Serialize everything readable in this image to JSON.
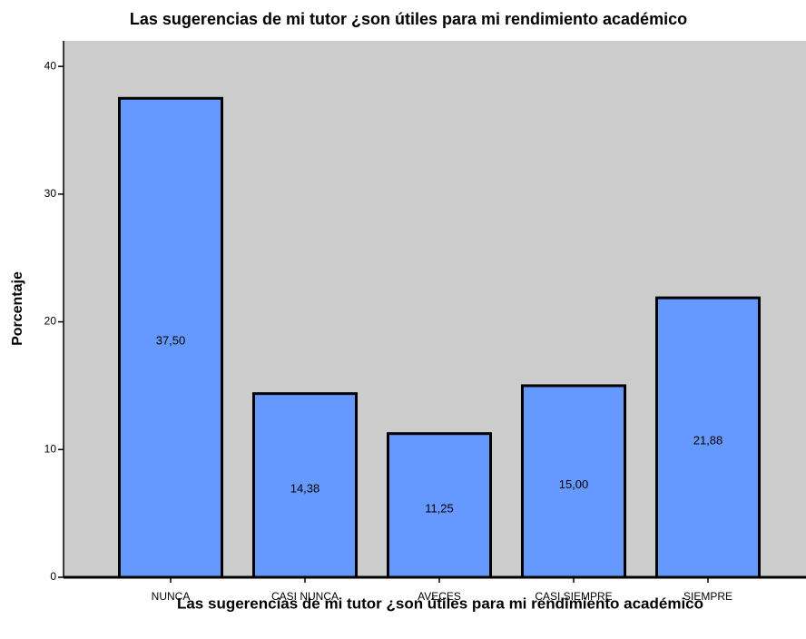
{
  "chart_data": {
    "type": "bar",
    "title": "Las sugerencias de mi tutor ¿son útiles para mi rendimiento académico",
    "x_label": "Las sugerencias de mi tutor ¿son útiles para mi rendimiento académico",
    "y_label": "Porcentaje",
    "categories": [
      "NUNCA",
      "CASI NUNCA",
      "AVECES",
      "CASI SIEMPRE",
      "SIEMPRE"
    ],
    "values": [
      37.5,
      14.38,
      11.25,
      15.0,
      21.88
    ],
    "value_labels": [
      "37,50",
      "14,38",
      "11,25",
      "15,00",
      "21,88"
    ],
    "color": "#6699ff",
    "background": "#cccccc",
    "ylim": [
      0,
      42
    ],
    "yticks": [
      0,
      10,
      20,
      30,
      40
    ],
    "grid": false
  }
}
